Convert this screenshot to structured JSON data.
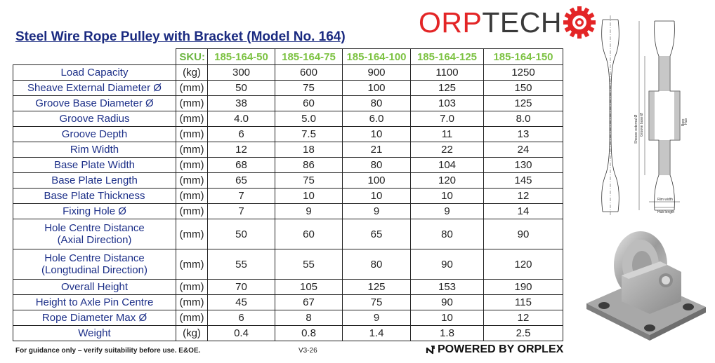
{
  "title": "Steel Wire Rope Pulley with Bracket (Model No. 164)",
  "brand": {
    "part1": "ORP",
    "part2": "TECH",
    "red": "#e32526",
    "dark": "#3a3a3a"
  },
  "table": {
    "sku_label": "SKU:",
    "skus": [
      "185-164-50",
      "185-164-75",
      "185-164-100",
      "185-164-125",
      "185-164-150"
    ],
    "rows": [
      {
        "param": "Load Capacity",
        "unit": "(kg)",
        "values": [
          "300",
          "600",
          "900",
          "1100",
          "1250"
        ]
      },
      {
        "param": "Sheave External Diameter Ø",
        "unit": "(mm)",
        "values": [
          "50",
          "75",
          "100",
          "125",
          "150"
        ]
      },
      {
        "param": "Groove Base Diameter Ø",
        "unit": "(mm)",
        "values": [
          "38",
          "60",
          "80",
          "103",
          "125"
        ]
      },
      {
        "param": "Groove Radius",
        "unit": "(mm)",
        "values": [
          "4.0",
          "5.0",
          "6.0",
          "7.0",
          "8.0"
        ]
      },
      {
        "param": "Groove Depth",
        "unit": "(mm)",
        "values": [
          "6",
          "7.5",
          "10",
          "11",
          "13"
        ]
      },
      {
        "param": "Rim Width",
        "unit": "(mm)",
        "values": [
          "12",
          "18",
          "21",
          "22",
          "24"
        ]
      },
      {
        "param": "Base Plate Width",
        "unit": "(mm)",
        "values": [
          "68",
          "86",
          "80",
          "104",
          "130"
        ]
      },
      {
        "param": "Base Plate Length",
        "unit": "(mm)",
        "values": [
          "65",
          "75",
          "100",
          "120",
          "145"
        ]
      },
      {
        "param": "Base Plate Thickness",
        "unit": "(mm)",
        "values": [
          "7",
          "10",
          "10",
          "10",
          "12"
        ]
      },
      {
        "param": "Fixing Hole Ø",
        "unit": "(mm)",
        "values": [
          "7",
          "9",
          "9",
          "9",
          "14"
        ]
      },
      {
        "param": "Hole Centre Distance",
        "param2": "(Axial Direction)",
        "unit": "(mm)",
        "values": [
          "50",
          "60",
          "65",
          "80",
          "90"
        ]
      },
      {
        "param": "Hole Centre Distance",
        "param2": "(Longtudinal Direction)",
        "unit": "(mm)",
        "values": [
          "55",
          "55",
          "80",
          "90",
          "120"
        ]
      },
      {
        "param": "Overall Height",
        "unit": "(mm)",
        "values": [
          "70",
          "105",
          "125",
          "153",
          "190"
        ]
      },
      {
        "param": "Height to Axle Pin Centre",
        "unit": "(mm)",
        "values": [
          "45",
          "67",
          "75",
          "90",
          "115"
        ]
      },
      {
        "param": "Rope Diameter Max Ø",
        "unit": "(mm)",
        "values": [
          "6",
          "8",
          "9",
          "10",
          "12"
        ]
      },
      {
        "param": "Weight",
        "unit": "(kg)",
        "values": [
          "0.4",
          "0.8",
          "1.4",
          "1.8",
          "2.5"
        ]
      }
    ]
  },
  "drawing_labels": {
    "groove_base": "Groove base Ø",
    "sheave_ext": "Sheave external Ø",
    "rim_width": "Rim width",
    "hub_length": "Hub length",
    "bore": "Bore",
    "hub": "Hub"
  },
  "footer": {
    "disclaimer": "For guidance only – verify suitability before use. E&OE.",
    "version": "V3-26",
    "powered": "POWERED BY ORPLEX"
  },
  "icons": {
    "logo_mark": "gear-icon",
    "powered_mark": "orplex-mark-icon"
  }
}
